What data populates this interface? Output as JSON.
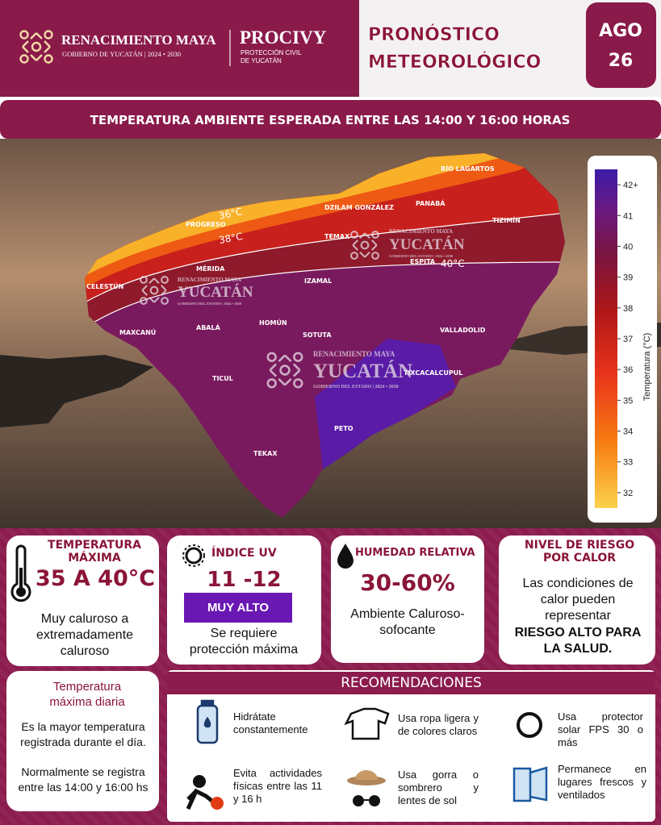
{
  "header": {
    "org_name": "RENACIMIENTO MAYA",
    "org_subtitle": "GOBIERNO DE YUCATÁN | 2024 • 2030",
    "agency": "PROCIVY",
    "agency_subtitle": [
      "PROTECCIÓN CIVIL",
      "DE YUCATÁN"
    ],
    "title": [
      "PRONÓSTICO",
      "METEOROLÓGICO"
    ],
    "date": {
      "month": "AGO",
      "day": "26"
    }
  },
  "banner": "TEMPERATURA AMBIENTE ESPERADA ENTRE LAS 14:00 Y 16:00 HORAS",
  "map": {
    "places": [
      "RÍO LAGARTOS",
      "PANABÁ",
      "TIZIMÍN",
      "DZILAM GONZÁLEZ",
      "PROGRESO",
      "TEMAX",
      "ESPITA",
      "MÉRIDA",
      "CELESTÚN",
      "IZAMAL",
      "MAXCANÚ",
      "ABALÁ",
      "HOMÚN",
      "SOTUTA",
      "VALLADOLID",
      "TIXCACALCUPUL",
      "TICUL",
      "PETO",
      "TEKAX"
    ],
    "contours": [
      "36°C",
      "38°C",
      "40°C"
    ],
    "watermark": {
      "line1": "RENACIMIENTO MAYA",
      "line2": "YUCATÁN",
      "line3": "GOBIERNO DEL ESTADO | 2024 • 2030"
    },
    "colorbar": {
      "label": "Temperatura (°C)",
      "range": [
        31.5,
        42.5
      ],
      "ticks": [
        32,
        33,
        34,
        35,
        36,
        37,
        38,
        39,
        40,
        41,
        {
          "value": 42,
          "label": "42+"
        }
      ]
    }
  },
  "cards": {
    "temperature": {
      "title": "TEMPERATURA MÁXIMA",
      "value": "35 A 40°C",
      "description": "Muy caluroso a extremadamente caluroso"
    },
    "uv": {
      "title": "ÍNDICE UV",
      "value": "11 -12",
      "level": "MUY ALTO",
      "description": "Se requiere protección máxima"
    },
    "humidity": {
      "title": "HUMEDAD RELATIVA",
      "value": "30-60%",
      "description": "Ambiente Caluroso-sofocante"
    },
    "risk": {
      "title": "NIVEL DE RIESGO POR CALOR",
      "description": "Las condiciones de calor pueden representar",
      "emphasis": "RIESGO ALTO PARA LA SALUD."
    }
  },
  "definition": {
    "title": "Temperatura máxima diaria",
    "paragraphs": [
      "Es la mayor temperatura registrada durante el día.",
      "Normalmente se registra entre las 14:00 y 16:00 hs"
    ]
  },
  "recommendations": {
    "title": "RECOMENDACIONES",
    "items": [
      "Hidrátate constantemente",
      "Usa ropa ligera y de colores claros",
      "Usa protector solar FPS 30 o más",
      "Evita actividades físicas entre las 11 y 16 h",
      "Usa gorra o sombrero y lentes de sol",
      "Permanece en lugares frescos y ventilados"
    ]
  }
}
